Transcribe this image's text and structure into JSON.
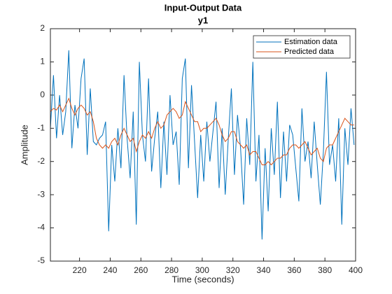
{
  "chart_data": {
    "type": "line",
    "title": "Input-Output Data",
    "subtitle": "y1",
    "xlabel": "Time (seconds)",
    "ylabel": "Amplitude",
    "x": [
      201,
      203,
      205,
      207,
      209,
      211,
      213,
      215,
      217,
      219,
      221,
      223,
      225,
      227,
      229,
      231,
      233,
      235,
      237,
      239,
      241,
      243,
      245,
      247,
      249,
      251,
      253,
      255,
      257,
      259,
      261,
      263,
      265,
      267,
      269,
      271,
      273,
      275,
      277,
      279,
      281,
      283,
      285,
      287,
      289,
      291,
      293,
      295,
      297,
      299,
      301,
      303,
      305,
      307,
      309,
      311,
      313,
      315,
      317,
      319,
      321,
      323,
      325,
      327,
      329,
      331,
      333,
      335,
      337,
      339,
      341,
      343,
      345,
      347,
      349,
      351,
      353,
      355,
      357,
      359,
      361,
      363,
      365,
      367,
      369,
      371,
      373,
      375,
      377,
      379,
      381,
      383,
      385,
      387,
      389,
      391,
      393,
      395,
      397,
      399
    ],
    "series": [
      {
        "name": "Estimation data",
        "color": "#0072bd",
        "values": [
          -1.0,
          0.6,
          -1.3,
          0.0,
          -1.2,
          -0.5,
          1.35,
          -1.6,
          -0.3,
          -1.0,
          0.5,
          1.1,
          -1.8,
          0.2,
          -1.4,
          -1.5,
          -1.3,
          -1.2,
          -0.8,
          -4.1,
          -1.5,
          -2.6,
          -1.0,
          -2.2,
          0.6,
          -1.3,
          -2.5,
          -0.5,
          -3.9,
          1.0,
          -1.2,
          -2.0,
          0.5,
          -2.3,
          -1.3,
          -0.5,
          -2.8,
          -0.8,
          -2.4,
          0.0,
          -1.5,
          -1.1,
          -2.7,
          0.5,
          1.1,
          -2.2,
          0.3,
          -1.4,
          -3.1,
          -1.2,
          -2.6,
          -0.8,
          -2.0,
          -1.1,
          -0.2,
          -2.8,
          -1.0,
          -3.0,
          -1.3,
          0.2,
          -2.4,
          -0.6,
          -1.6,
          -3.3,
          -0.7,
          -2.1,
          1.0,
          -2.6,
          -1.2,
          -4.35,
          -1.6,
          -3.5,
          -1.0,
          -2.4,
          -0.2,
          -3.1,
          -1.1,
          -2.6,
          -0.9,
          -1.2,
          -2.2,
          -3.2,
          -0.4,
          -2.0,
          -1.4,
          -2.5,
          -0.8,
          -2.1,
          -3.3,
          -1.7,
          0.7,
          -2.1,
          -1.5,
          -2.6,
          -0.7,
          -3.9,
          -1.0,
          -2.1,
          -0.4,
          -1.5
        ]
      },
      {
        "name": "Predicted data",
        "color": "#d95319",
        "values": [
          -0.5,
          -0.4,
          -0.45,
          -0.3,
          -0.5,
          -0.3,
          -0.1,
          -0.4,
          -0.6,
          -0.4,
          -0.3,
          -0.4,
          -0.6,
          -0.5,
          -0.8,
          -1.3,
          -1.5,
          -1.6,
          -1.5,
          -1.6,
          -1.4,
          -1.3,
          -1.5,
          -1.2,
          -1.0,
          -1.2,
          -1.4,
          -1.3,
          -1.7,
          -1.4,
          -1.2,
          -1.3,
          -1.1,
          -1.3,
          -1.0,
          -0.8,
          -1.0,
          -0.9,
          -0.6,
          -0.5,
          -0.4,
          -0.5,
          -0.7,
          -0.6,
          -0.2,
          -0.4,
          -0.6,
          -0.8,
          -0.8,
          -1.1,
          -1.0,
          -1.0,
          -0.9,
          -0.8,
          -0.7,
          -0.9,
          -1.2,
          -1.4,
          -1.3,
          -1.1,
          -1.1,
          -1.4,
          -1.5,
          -1.6,
          -1.5,
          -1.8,
          -1.7,
          -1.7,
          -1.9,
          -2.1,
          -2.1,
          -2.0,
          -2.1,
          -2.0,
          -1.9,
          -1.9,
          -1.8,
          -1.8,
          -1.6,
          -1.5,
          -1.5,
          -1.6,
          -1.5,
          -1.4,
          -1.6,
          -1.8,
          -1.7,
          -1.6,
          -1.9,
          -2.0,
          -1.6,
          -1.5,
          -1.5,
          -1.3,
          -1.1,
          -0.9,
          -0.7,
          -0.8,
          -0.9,
          -0.9
        ]
      }
    ],
    "xlim": [
      201,
      400
    ],
    "xticks": [
      220,
      240,
      260,
      280,
      300,
      320,
      340,
      360,
      380,
      400
    ],
    "ylim": [
      -5,
      2
    ],
    "yticks": [
      -5,
      -4,
      -3,
      -2,
      -1,
      0,
      1,
      2
    ],
    "grid": false,
    "legend": "northeast"
  }
}
